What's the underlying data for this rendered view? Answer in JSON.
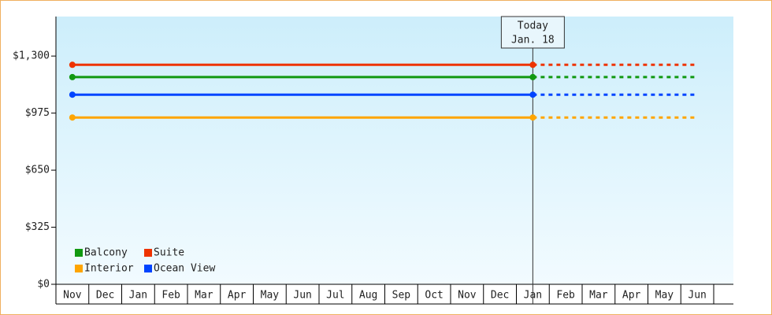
{
  "chart_data": {
    "type": "line",
    "categories": [
      "Nov",
      "Dec",
      "Jan",
      "Feb",
      "Mar",
      "Apr",
      "May",
      "Jun",
      "Jul",
      "Aug",
      "Sep",
      "Oct",
      "Nov",
      "Dec",
      "Jan",
      "Feb",
      "Mar",
      "Apr",
      "May",
      "Jun"
    ],
    "series": [
      {
        "name": "Balcony",
        "color": "#119911",
        "values": [
          1180,
          1180,
          1180,
          1180,
          1180,
          1180,
          1180,
          1180,
          1180,
          1180,
          1180,
          1180,
          1180,
          1180,
          1180,
          1180,
          1180,
          1180,
          1180,
          1180
        ]
      },
      {
        "name": "Suite",
        "color": "#ee3300",
        "values": [
          1250,
          1250,
          1250,
          1250,
          1250,
          1250,
          1250,
          1250,
          1250,
          1250,
          1250,
          1250,
          1250,
          1250,
          1250,
          1250,
          1250,
          1250,
          1250,
          1250
        ]
      },
      {
        "name": "Interior",
        "color": "#ffa500",
        "values": [
          950,
          950,
          950,
          950,
          950,
          950,
          950,
          950,
          950,
          950,
          950,
          950,
          950,
          950,
          950,
          950,
          950,
          950,
          950,
          950
        ]
      },
      {
        "name": "Ocean View",
        "color": "#0044ff",
        "values": [
          1080,
          1080,
          1080,
          1080,
          1080,
          1080,
          1080,
          1080,
          1080,
          1080,
          1080,
          1080,
          1080,
          1080,
          1080,
          1080,
          1080,
          1080,
          1080,
          1080
        ]
      }
    ],
    "ylim": [
      0,
      1525
    ],
    "yticks": [
      {
        "value": 0,
        "label": "$0"
      },
      {
        "value": 325,
        "label": "$325"
      },
      {
        "value": 650,
        "label": "$650"
      },
      {
        "value": 975,
        "label": "$975"
      },
      {
        "value": 1300,
        "label": "$1,300"
      }
    ],
    "today": {
      "lines": [
        "Today",
        "Jan. 18"
      ],
      "index": 14
    },
    "legend": "lower-left"
  }
}
